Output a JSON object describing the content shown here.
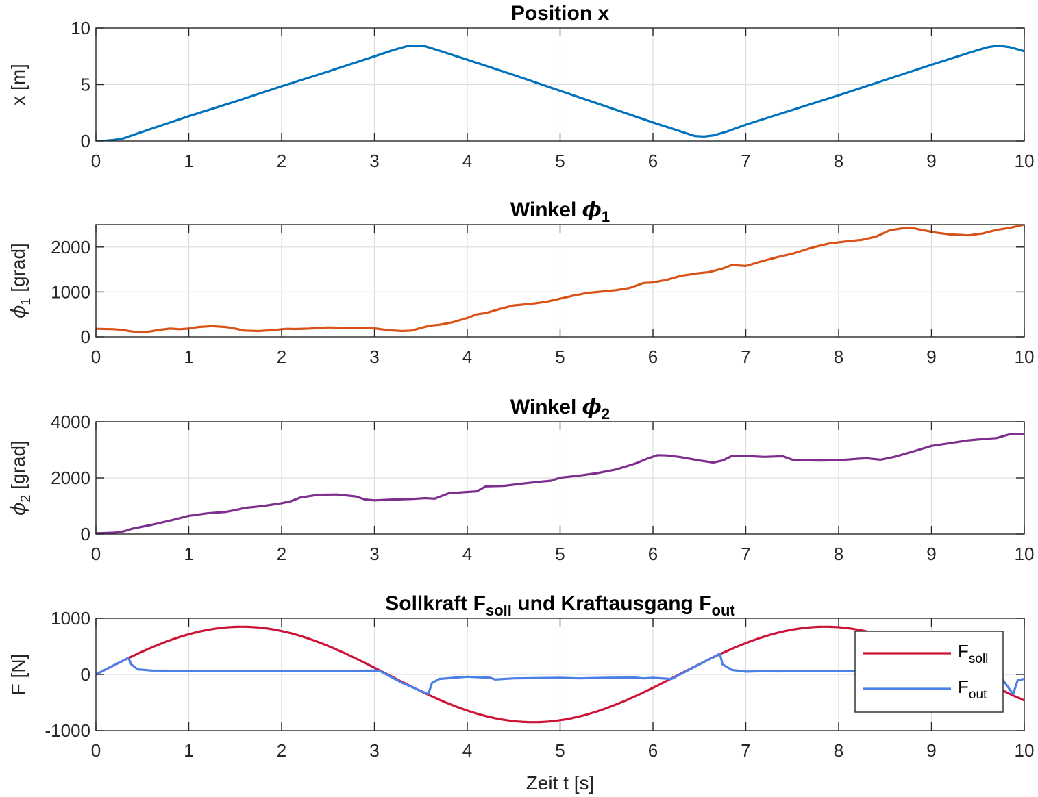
{
  "chart_data": [
    {
      "type": "line",
      "title": "Position x",
      "title_parts": [
        {
          "t": "Position x",
          "sub": false
        }
      ],
      "ylabel_parts": [
        {
          "t": "x [m]",
          "sub": false,
          "greek": false
        }
      ],
      "xlabel": "",
      "xlim": [
        0,
        10
      ],
      "ylim": [
        0,
        10
      ],
      "xticks": [
        "0",
        "1",
        "2",
        "3",
        "4",
        "5",
        "6",
        "7",
        "8",
        "9",
        "10"
      ],
      "yticks": [
        {
          "v": 0,
          "label": "0"
        },
        {
          "v": 5,
          "label": "5"
        },
        {
          "v": 10,
          "label": "10"
        }
      ],
      "grid": true,
      "series": [
        {
          "color": "#0072BD",
          "x": [
            0,
            0.1,
            0.2,
            0.3,
            0.5,
            1.0,
            1.5,
            2.0,
            2.5,
            3.0,
            3.2,
            3.35,
            3.45,
            3.55,
            3.7,
            4.0,
            4.5,
            5.0,
            5.5,
            6.0,
            6.3,
            6.45,
            6.55,
            6.65,
            6.8,
            7.0,
            7.5,
            8.0,
            8.5,
            9.0,
            9.4,
            9.6,
            9.72,
            9.85,
            10.0
          ],
          "y": [
            0,
            0.03,
            0.1,
            0.25,
            0.82,
            2.2,
            3.5,
            4.85,
            6.15,
            7.5,
            8.05,
            8.4,
            8.45,
            8.38,
            8.0,
            7.2,
            5.85,
            4.45,
            3.05,
            1.65,
            0.85,
            0.45,
            0.4,
            0.5,
            0.85,
            1.45,
            2.75,
            4.05,
            5.4,
            6.75,
            7.8,
            8.3,
            8.45,
            8.3,
            7.95
          ]
        }
      ]
    },
    {
      "type": "line",
      "title": "Winkel ϕ1",
      "title_parts": [
        {
          "t": "Winkel ",
          "sub": false
        },
        {
          "t": "ϕ",
          "sub": false,
          "greek": true
        },
        {
          "t": "1",
          "sub": true
        }
      ],
      "ylabel_parts": [
        {
          "t": "ϕ",
          "sub": false,
          "greek": true
        },
        {
          "t": "1",
          "sub": true
        },
        {
          "t": " [grad]",
          "sub": false
        }
      ],
      "xlabel": "",
      "xlim": [
        0,
        10
      ],
      "ylim": [
        0,
        2500
      ],
      "xticks": [
        "0",
        "1",
        "2",
        "3",
        "4",
        "5",
        "6",
        "7",
        "8",
        "9",
        "10"
      ],
      "yticks": [
        {
          "v": 0,
          "label": "0"
        },
        {
          "v": 1000,
          "label": "1000"
        },
        {
          "v": 2000,
          "label": "2000"
        }
      ],
      "grid": true,
      "series": [
        {
          "color": "#D95319",
          "x": [
            0,
            0.2,
            0.3,
            0.45,
            0.55,
            0.7,
            0.8,
            0.9,
            1.0,
            1.1,
            1.25,
            1.4,
            1.5,
            1.6,
            1.75,
            1.9,
            2.05,
            2.15,
            2.3,
            2.5,
            2.7,
            2.9,
            3.0,
            3.15,
            3.3,
            3.4,
            3.5,
            3.6,
            3.7,
            3.85,
            4.0,
            4.1,
            4.2,
            4.35,
            4.5,
            4.7,
            4.85,
            5.0,
            5.15,
            5.3,
            5.5,
            5.6,
            5.75,
            5.9,
            6.0,
            6.15,
            6.3,
            6.5,
            6.6,
            6.75,
            6.85,
            7.0,
            7.2,
            7.35,
            7.5,
            7.7,
            7.9,
            8.1,
            8.25,
            8.4,
            8.55,
            8.7,
            8.8,
            8.9,
            9.05,
            9.2,
            9.4,
            9.55,
            9.7,
            9.85,
            10.0
          ],
          "y": [
            180,
            170,
            150,
            100,
            110,
            160,
            185,
            170,
            185,
            220,
            240,
            220,
            185,
            140,
            130,
            150,
            180,
            175,
            185,
            210,
            200,
            205,
            190,
            150,
            130,
            140,
            200,
            250,
            270,
            330,
            420,
            500,
            530,
            620,
            700,
            740,
            780,
            850,
            920,
            980,
            1020,
            1040,
            1090,
            1200,
            1210,
            1270,
            1360,
            1420,
            1440,
            1520,
            1600,
            1580,
            1700,
            1780,
            1850,
            1980,
            2080,
            2130,
            2160,
            2230,
            2370,
            2420,
            2420,
            2380,
            2320,
            2280,
            2260,
            2300,
            2380,
            2430,
            2500
          ]
        }
      ]
    },
    {
      "type": "line",
      "title": "Winkel ϕ2",
      "title_parts": [
        {
          "t": "Winkel ",
          "sub": false
        },
        {
          "t": "ϕ",
          "sub": false,
          "greek": true
        },
        {
          "t": "2",
          "sub": true
        }
      ],
      "ylabel_parts": [
        {
          "t": "ϕ",
          "sub": false,
          "greek": true
        },
        {
          "t": "2",
          "sub": true
        },
        {
          "t": " [grad]",
          "sub": false
        }
      ],
      "xlabel": "",
      "xlim": [
        0,
        10
      ],
      "ylim": [
        0,
        4000
      ],
      "xticks": [
        "0",
        "1",
        "2",
        "3",
        "4",
        "5",
        "6",
        "7",
        "8",
        "9",
        "10"
      ],
      "yticks": [
        {
          "v": 0,
          "label": "0"
        },
        {
          "v": 2000,
          "label": "2000"
        },
        {
          "v": 4000,
          "label": "4000"
        }
      ],
      "grid": true,
      "series": [
        {
          "color": "#7E2F8E",
          "x": [
            0,
            0.2,
            0.3,
            0.4,
            0.6,
            0.8,
            1.0,
            1.2,
            1.4,
            1.5,
            1.6,
            1.8,
            2.0,
            2.1,
            2.2,
            2.4,
            2.6,
            2.8,
            2.9,
            3.0,
            3.2,
            3.4,
            3.55,
            3.65,
            3.8,
            4.0,
            4.1,
            4.2,
            4.4,
            4.6,
            4.8,
            4.9,
            5.0,
            5.2,
            5.4,
            5.6,
            5.8,
            5.95,
            6.05,
            6.15,
            6.3,
            6.5,
            6.65,
            6.75,
            6.85,
            7.0,
            7.2,
            7.4,
            7.5,
            7.6,
            7.8,
            8.0,
            8.2,
            8.3,
            8.45,
            8.6,
            8.8,
            9.0,
            9.2,
            9.4,
            9.6,
            9.7,
            9.85,
            10.0
          ],
          "y": [
            30,
            50,
            100,
            200,
            330,
            480,
            650,
            740,
            790,
            850,
            930,
            1000,
            1100,
            1170,
            1300,
            1400,
            1410,
            1340,
            1230,
            1200,
            1230,
            1250,
            1280,
            1260,
            1450,
            1500,
            1520,
            1700,
            1720,
            1800,
            1870,
            1900,
            2010,
            2080,
            2170,
            2300,
            2500,
            2700,
            2810,
            2800,
            2740,
            2620,
            2550,
            2620,
            2780,
            2780,
            2750,
            2770,
            2650,
            2630,
            2620,
            2630,
            2680,
            2700,
            2650,
            2750,
            2940,
            3140,
            3240,
            3340,
            3400,
            3420,
            3560,
            3570
          ]
        }
      ]
    },
    {
      "type": "line",
      "title": "Sollkraft Fsoll und Kraftausgang Fout",
      "title_parts": [
        {
          "t": "Sollkraft F",
          "sub": false
        },
        {
          "t": "soll",
          "sub": true
        },
        {
          "t": " und Kraftausgang F",
          "sub": false
        },
        {
          "t": "out",
          "sub": true
        }
      ],
      "ylabel_parts": [
        {
          "t": "F [N]",
          "sub": false
        }
      ],
      "xlabel": "Zeit t [s]",
      "xlim": [
        0,
        10
      ],
      "ylim": [
        -1000,
        1000
      ],
      "xticks": [
        "0",
        "1",
        "2",
        "3",
        "4",
        "5",
        "6",
        "7",
        "8",
        "9",
        "10"
      ],
      "yticks": [
        {
          "v": -1000,
          "label": "-1000"
        },
        {
          "v": 0,
          "label": "0"
        },
        {
          "v": 1000,
          "label": "1000"
        }
      ],
      "grid": true,
      "legend": "top-right",
      "series": [
        {
          "name_parts": [
            {
              "t": "F",
              "sub": false
            },
            {
              "t": "soll",
              "sub": true
            }
          ],
          "color": "#CC1438",
          "func": "sine",
          "amplitude": 850,
          "omega": 1.0,
          "x_start": 0,
          "x_end": 10
        },
        {
          "name_parts": [
            {
              "t": "F",
              "sub": false
            },
            {
              "t": "out",
              "sub": true
            }
          ],
          "color": "#4D80E6",
          "x": [
            0,
            0.35,
            0.38,
            0.45,
            0.6,
            1.0,
            1.5,
            2.0,
            2.5,
            3.05,
            3.3,
            3.58,
            3.62,
            3.7,
            3.85,
            4.0,
            4.25,
            4.3,
            4.5,
            5.0,
            5.2,
            5.5,
            5.8,
            5.9,
            6.0,
            6.2,
            6.72,
            6.75,
            6.85,
            7.0,
            7.2,
            7.35,
            7.5,
            8.0,
            8.5,
            9.0,
            9.3,
            9.5,
            9.7,
            9.88,
            9.93,
            10.0
          ],
          "y": [
            0,
            295,
            180,
            90,
            70,
            65,
            65,
            65,
            65,
            70,
            -150,
            -350,
            -150,
            -80,
            -60,
            -40,
            -60,
            -90,
            -70,
            -60,
            -70,
            -60,
            -55,
            -70,
            -60,
            -80,
            370,
            180,
            80,
            50,
            60,
            55,
            60,
            65,
            65,
            60,
            60,
            65,
            60,
            -350,
            -100,
            -80
          ]
        }
      ]
    }
  ]
}
